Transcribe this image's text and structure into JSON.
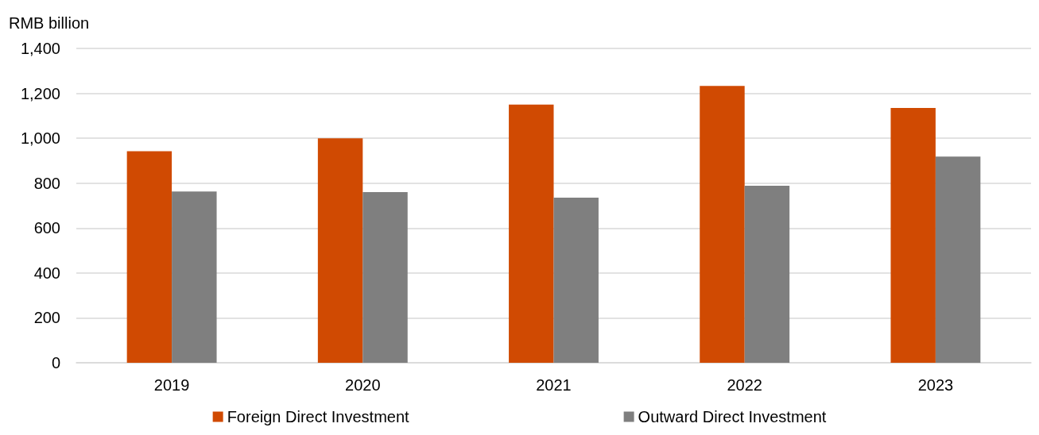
{
  "chart_data": {
    "type": "bar",
    "ylabel": "RMB billion",
    "categories": [
      "2019",
      "2020",
      "2021",
      "2022",
      "2023"
    ],
    "series": [
      {
        "name": "Foreign Direct Investment",
        "color": "#d04a02",
        "values": [
          942,
          1000,
          1150,
          1233,
          1135
        ]
      },
      {
        "name": "Outward Direct Investment",
        "color": "#7f7f7f",
        "values": [
          763,
          760,
          735,
          788,
          918
        ]
      }
    ],
    "ylim": [
      0,
      1400
    ],
    "yticks": [
      0,
      200,
      400,
      600,
      800,
      {
        "value": 1000,
        "label": "1,000"
      },
      {
        "value": 1200,
        "label": "1,200"
      },
      {
        "value": 1400,
        "label": "1,400"
      }
    ],
    "grid": "y",
    "legend": "bottom"
  }
}
